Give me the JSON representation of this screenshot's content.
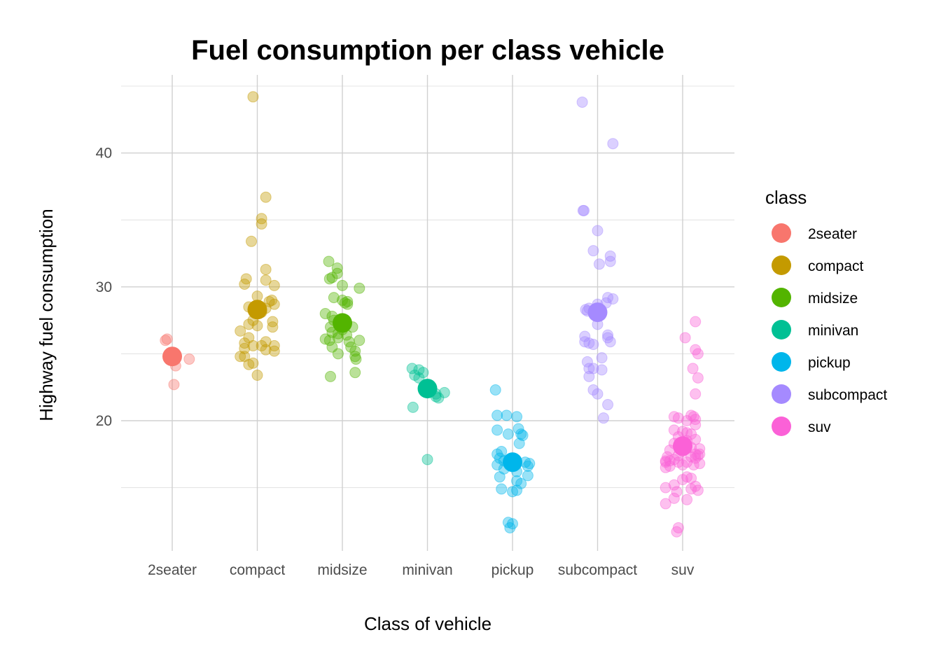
{
  "chart_data": {
    "type": "scatter",
    "title": "Fuel consumption per class vehicle",
    "xlabel": "Class of vehicle",
    "ylabel": "Highway fuel consumption",
    "ylim": [
      10.5,
      45.5
    ],
    "yticks": [
      20,
      30,
      40
    ],
    "grid": true,
    "legend": {
      "title": "class",
      "position": "right"
    },
    "categories": [
      "2seater",
      "compact",
      "midsize",
      "minivan",
      "pickup",
      "subcompact",
      "suv"
    ],
    "colors": {
      "2seater": "#F8766D",
      "compact": "#C49A00",
      "midsize": "#53B400",
      "minivan": "#00C094",
      "pickup": "#00B6EB",
      "subcompact": "#A58AFF",
      "suv": "#FB61D7"
    },
    "means": [
      {
        "category": "2seater",
        "y": 24.8
      },
      {
        "category": "compact",
        "y": 28.3
      },
      {
        "category": "midsize",
        "y": 27.3
      },
      {
        "category": "minivan",
        "y": 22.4
      },
      {
        "category": "pickup",
        "y": 16.9
      },
      {
        "category": "subcompact",
        "y": 28.1
      },
      {
        "category": "suv",
        "y": 18.1
      }
    ],
    "points": {
      "2seater": [
        [
          -0.08,
          26
        ],
        [
          -0.06,
          26.1
        ],
        [
          0.2,
          24.6
        ],
        [
          0.04,
          24.1
        ],
        [
          0.02,
          22.7
        ]
      ],
      "compact": [
        [
          -0.05,
          44.2
        ],
        [
          0.1,
          36.7
        ],
        [
          0.05,
          35.1
        ],
        [
          0.05,
          34.7
        ],
        [
          -0.07,
          33.4
        ],
        [
          0.1,
          31.3
        ],
        [
          -0.13,
          30.6
        ],
        [
          -0.15,
          30.2
        ],
        [
          0.2,
          30.1
        ],
        [
          0.1,
          30.5
        ],
        [
          0.2,
          28.7
        ],
        [
          0.0,
          29.3
        ],
        [
          -0.1,
          28.5
        ],
        [
          0.1,
          28.4
        ],
        [
          0.17,
          29
        ],
        [
          0.14,
          28.9
        ],
        [
          0.05,
          28.1
        ],
        [
          -0.05,
          27.5
        ],
        [
          0.18,
          27.4
        ],
        [
          0.18,
          27
        ],
        [
          -0.1,
          27.2
        ],
        [
          -0.2,
          26.7
        ],
        [
          0.0,
          27.1
        ],
        [
          -0.1,
          26.2
        ],
        [
          0.1,
          25.9
        ],
        [
          -0.15,
          25.8
        ],
        [
          0.05,
          25.6
        ],
        [
          0.2,
          25.6
        ],
        [
          -0.05,
          25.6
        ],
        [
          0.1,
          25.3
        ],
        [
          -0.15,
          25.4
        ],
        [
          0.2,
          25.2
        ],
        [
          -0.15,
          24.8
        ],
        [
          -0.2,
          24.8
        ],
        [
          -0.05,
          24.3
        ],
        [
          -0.1,
          24.2
        ],
        [
          0.0,
          23.4
        ]
      ],
      "midsize": [
        [
          -0.16,
          31.9
        ],
        [
          -0.06,
          31.4
        ],
        [
          -0.06,
          31
        ],
        [
          -0.12,
          30.7
        ],
        [
          -0.15,
          30.6
        ],
        [
          0.0,
          30.1
        ],
        [
          0.2,
          29.9
        ],
        [
          -0.1,
          29.2
        ],
        [
          0.0,
          29
        ],
        [
          0.03,
          28.8
        ],
        [
          0.06,
          28.9
        ],
        [
          0.06,
          28.7
        ],
        [
          -0.2,
          28
        ],
        [
          -0.12,
          27.8
        ],
        [
          -0.1,
          27.5
        ],
        [
          -0.14,
          27
        ],
        [
          -0.12,
          26.6
        ],
        [
          0.12,
          27
        ],
        [
          0.0,
          26.8
        ],
        [
          0.05,
          26.4
        ],
        [
          -0.05,
          26.5
        ],
        [
          -0.2,
          26.1
        ],
        [
          -0.15,
          26
        ],
        [
          0.2,
          26
        ],
        [
          -0.05,
          26.2
        ],
        [
          -0.12,
          25.5
        ],
        [
          0.08,
          25.9
        ],
        [
          0.1,
          25.5
        ],
        [
          0.15,
          25.2
        ],
        [
          -0.05,
          25
        ],
        [
          0.15,
          24.8
        ],
        [
          0.16,
          24.6
        ],
        [
          0.15,
          23.6
        ],
        [
          -0.14,
          23.3
        ]
      ],
      "minivan": [
        [
          -0.18,
          23.9
        ],
        [
          -0.1,
          23.8
        ],
        [
          -0.05,
          23.6
        ],
        [
          -0.15,
          23.4
        ],
        [
          -0.1,
          23.2
        ],
        [
          0.0,
          22.4
        ],
        [
          0.1,
          22
        ],
        [
          0.2,
          22.1
        ],
        [
          0.1,
          21.8
        ],
        [
          0.13,
          21.7
        ],
        [
          -0.17,
          21
        ],
        [
          0.0,
          17.1
        ]
      ],
      "pickup": [
        [
          -0.2,
          22.3
        ],
        [
          -0.18,
          20.4
        ],
        [
          -0.07,
          20.4
        ],
        [
          0.05,
          20.3
        ],
        [
          -0.18,
          19.3
        ],
        [
          0.07,
          19.4
        ],
        [
          0.1,
          19
        ],
        [
          -0.05,
          19
        ],
        [
          0.12,
          18.9
        ],
        [
          0.08,
          18.3
        ],
        [
          -0.13,
          17.7
        ],
        [
          -0.18,
          17.5
        ],
        [
          -0.15,
          17.2
        ],
        [
          -0.1,
          17
        ],
        [
          0.15,
          16.9
        ],
        [
          0.2,
          16.8
        ],
        [
          0.0,
          16.6
        ],
        [
          0.18,
          16.6
        ],
        [
          -0.18,
          16.7
        ],
        [
          -0.1,
          16.4
        ],
        [
          0.05,
          16.2
        ],
        [
          0.18,
          15.9
        ],
        [
          -0.15,
          15.8
        ],
        [
          0.05,
          15.5
        ],
        [
          0.1,
          15.3
        ],
        [
          -0.13,
          14.9
        ],
        [
          0.05,
          14.8
        ],
        [
          0.0,
          14.7
        ],
        [
          -0.05,
          12.4
        ],
        [
          0.0,
          12.3
        ],
        [
          -0.03,
          12
        ]
      ],
      "subcompact": [
        [
          -0.18,
          43.8
        ],
        [
          0.18,
          40.7
        ],
        [
          -0.16,
          35.7
        ],
        [
          -0.17,
          35.7
        ],
        [
          0.0,
          34.2
        ],
        [
          -0.05,
          32.7
        ],
        [
          0.15,
          32.3
        ],
        [
          0.15,
          31.9
        ],
        [
          0.02,
          31.7
        ],
        [
          -0.14,
          28.3
        ],
        [
          -0.12,
          28.2
        ],
        [
          -0.1,
          28.4
        ],
        [
          0.0,
          28.7
        ],
        [
          0.12,
          29.2
        ],
        [
          0.18,
          29.1
        ],
        [
          0.1,
          28.8
        ],
        [
          0.0,
          28
        ],
        [
          0.0,
          27.2
        ],
        [
          -0.15,
          26.3
        ],
        [
          -0.15,
          25.9
        ],
        [
          -0.1,
          25.8
        ],
        [
          -0.05,
          25.7
        ],
        [
          0.12,
          26.4
        ],
        [
          0.12,
          26.2
        ],
        [
          0.15,
          25.9
        ],
        [
          0.05,
          24.7
        ],
        [
          -0.12,
          24.4
        ],
        [
          -0.1,
          23.9
        ],
        [
          -0.05,
          23.9
        ],
        [
          0.05,
          23.8
        ],
        [
          -0.1,
          23.3
        ],
        [
          -0.05,
          22.3
        ],
        [
          0.0,
          22
        ],
        [
          0.12,
          21.2
        ],
        [
          0.07,
          20.2
        ]
      ],
      "suv": [
        [
          0.15,
          27.4
        ],
        [
          0.03,
          26.2
        ],
        [
          0.15,
          25.3
        ],
        [
          0.18,
          25
        ],
        [
          0.12,
          23.9
        ],
        [
          0.18,
          23.2
        ],
        [
          0.15,
          22
        ],
        [
          -0.1,
          20.3
        ],
        [
          -0.05,
          20.2
        ],
        [
          0.1,
          20.4
        ],
        [
          0.13,
          20.3
        ],
        [
          0.15,
          20.1
        ],
        [
          0.05,
          20
        ],
        [
          0.15,
          19.7
        ],
        [
          -0.1,
          19.3
        ],
        [
          0.0,
          19.2
        ],
        [
          0.05,
          19.1
        ],
        [
          0.1,
          19
        ],
        [
          -0.05,
          18.8
        ],
        [
          0.15,
          18.6
        ],
        [
          0.05,
          18.5
        ],
        [
          -0.1,
          18.3
        ],
        [
          0.0,
          18.2
        ],
        [
          -0.05,
          18.1
        ],
        [
          0.1,
          18
        ],
        [
          0.2,
          17.9
        ],
        [
          -0.15,
          17.8
        ],
        [
          0.0,
          17.7
        ],
        [
          0.15,
          17.5
        ],
        [
          0.2,
          17.5
        ],
        [
          0.18,
          17.4
        ],
        [
          -0.05,
          17.4
        ],
        [
          0.1,
          17.3
        ],
        [
          0.15,
          17.2
        ],
        [
          -0.18,
          17.3
        ],
        [
          -0.2,
          17
        ],
        [
          -0.15,
          17
        ],
        [
          -0.2,
          16.9
        ],
        [
          -0.1,
          17.1
        ],
        [
          -0.05,
          16.9
        ],
        [
          0.05,
          16.9
        ],
        [
          0.13,
          16.7
        ],
        [
          0.2,
          16.8
        ],
        [
          -0.2,
          16.5
        ],
        [
          0.0,
          16.7
        ],
        [
          -0.15,
          16.6
        ],
        [
          0.05,
          15.8
        ],
        [
          0.1,
          15.7
        ],
        [
          0.0,
          15.6
        ],
        [
          -0.2,
          15
        ],
        [
          -0.1,
          15.2
        ],
        [
          0.15,
          15.1
        ],
        [
          0.1,
          14.9
        ],
        [
          -0.07,
          14.7
        ],
        [
          0.18,
          14.8
        ],
        [
          -0.1,
          14.2
        ],
        [
          0.05,
          14.1
        ],
        [
          -0.2,
          13.8
        ],
        [
          -0.05,
          12
        ],
        [
          -0.07,
          11.7
        ]
      ]
    }
  }
}
